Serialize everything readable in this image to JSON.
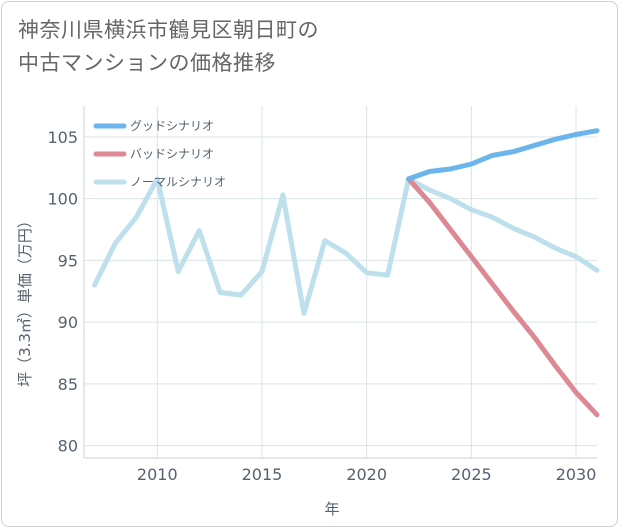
{
  "title_lines": [
    "神奈川県横浜市鶴見区朝日町の",
    "中古マンションの価格推移"
  ],
  "chart_data": {
    "type": "line",
    "xlabel": "年",
    "ylabel": "坪（3.3㎡）単価（万円）",
    "xlim": [
      2006.5,
      2031
    ],
    "ylim": [
      79,
      107.5
    ],
    "xticks": [
      2010,
      2015,
      2020,
      2025,
      2030
    ],
    "yticks": [
      80,
      85,
      90,
      95,
      100,
      105
    ],
    "grid": true,
    "legend_position": "top-left",
    "series": [
      {
        "name": "グッドシナリオ",
        "color": "#6cb4ec",
        "x": [
          2022,
          2023,
          2024,
          2025,
          2026,
          2027,
          2028,
          2029,
          2030,
          2031
        ],
        "y": [
          101.6,
          102.2,
          102.4,
          102.8,
          103.5,
          103.8,
          104.3,
          104.8,
          105.2,
          105.5
        ]
      },
      {
        "name": "バッドシナリオ",
        "color": "#dc8993",
        "x": [
          2022,
          2023,
          2024,
          2025,
          2026,
          2027,
          2028,
          2029,
          2030,
          2031
        ],
        "y": [
          101.6,
          99.7,
          97.5,
          95.3,
          93.1,
          90.9,
          88.8,
          86.5,
          84.3,
          82.5
        ]
      },
      {
        "name": "ノーマルシナリオ",
        "color": "#bde0ec",
        "x": [
          2007,
          2008,
          2009,
          2010,
          2011,
          2012,
          2013,
          2014,
          2015,
          2016,
          2017,
          2018,
          2019,
          2020,
          2021,
          2022,
          2023,
          2024,
          2025,
          2026,
          2027,
          2028,
          2029,
          2030,
          2031
        ],
        "y": [
          93.0,
          96.4,
          98.5,
          101.6,
          94.1,
          97.4,
          92.4,
          92.2,
          94.1,
          100.3,
          90.7,
          96.6,
          95.6,
          94.0,
          93.8,
          101.6,
          100.7,
          100.0,
          99.1,
          98.5,
          97.6,
          96.9,
          96.0,
          95.3,
          94.2
        ]
      }
    ]
  }
}
